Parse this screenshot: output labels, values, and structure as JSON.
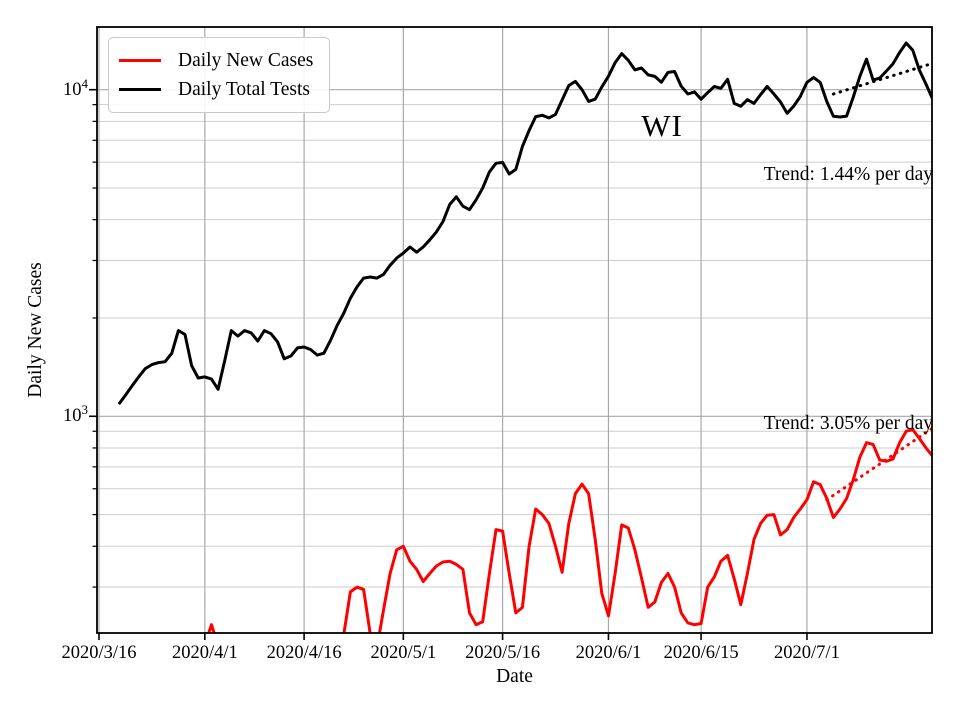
{
  "chart_data": {
    "type": "line",
    "state_label": "WI",
    "xlabel": "Date",
    "ylabel": "Daily New Cases",
    "y_scale": "log",
    "ylim": [
      217,
      15560
    ],
    "xlim_days": [
      -0.3,
      125.9
    ],
    "x_epoch": "2020/3/16",
    "grid": true,
    "x_ticks": [
      {
        "day": 0,
        "label": "2020/3/16"
      },
      {
        "day": 16,
        "label": "2020/4/1"
      },
      {
        "day": 31,
        "label": "2020/4/16"
      },
      {
        "day": 46,
        "label": "2020/5/1"
      },
      {
        "day": 61,
        "label": "2020/5/16"
      },
      {
        "day": 77,
        "label": "2020/6/1"
      },
      {
        "day": 91,
        "label": "2020/6/15"
      },
      {
        "day": 107,
        "label": "2020/7/1"
      }
    ],
    "y_major_ticks": [
      {
        "value": 1000,
        "base": "10",
        "exp": "3"
      },
      {
        "value": 10000,
        "base": "10",
        "exp": "4"
      }
    ],
    "y_minor_gridlines": [
      300,
      400,
      500,
      600,
      700,
      800,
      900,
      2000,
      3000,
      4000,
      5000,
      6000,
      7000,
      8000,
      9000
    ],
    "legend": {
      "position": "upper-left",
      "entries": [
        {
          "label": "Daily New Cases",
          "color": "#ff0000"
        },
        {
          "label": "Daily Total Tests",
          "color": "#000000"
        }
      ]
    },
    "annotations": {
      "tests_trend_label": "Trend: 1.44% per day",
      "cases_trend_label": "Trend: 3.05% per day"
    },
    "colors": {
      "cases": "#ff0000",
      "tests": "#000000",
      "grid_major": "#a8a8a8",
      "grid_minor": "#cdcdcd"
    },
    "series": [
      {
        "name": "Daily New Cases",
        "slug": "daily-new-cases",
        "color": "#ff0000",
        "line_style": "solid",
        "segments": [
          {
            "start_day": 16,
            "start_date": "2020/4/1",
            "values": [
              200,
              230,
              198
            ]
          },
          {
            "start_day": 36,
            "start_date": "2020/4/21",
            "values": [
              190,
              215,
              290,
              300,
              295,
              215,
              195,
              255,
              330,
              390,
              400,
              360,
              340,
              312,
              330,
              348,
              358,
              360,
              352,
              340,
              250,
              230,
              235,
              330,
              450,
              445,
              330,
              250,
              260,
              400,
              520,
              500,
              470,
              400,
              333,
              470,
              580,
              620,
              580,
              420,
              287,
              245,
              330,
              465,
              455,
              390,
              320,
              260,
              270,
              310,
              330,
              300,
              250,
              233,
              230,
              232,
              300,
              322,
              360,
              375,
              318,
              265,
              330,
              420,
              470,
              498,
              500,
              433,
              450,
              490,
              520,
              555,
              630,
              618,
              560,
              490,
              520,
              560,
              640,
              750,
              830,
              820,
              735,
              728,
              740,
              830,
              900,
              910,
              855,
              800,
              755
            ]
          }
        ]
      },
      {
        "name": "Daily Total Tests",
        "slug": "daily-total-tests",
        "color": "#000000",
        "line_style": "solid",
        "segments": [
          {
            "start_day": 3,
            "start_date": "2020/3/19",
            "values": [
              1090,
              1160,
              1240,
              1320,
              1400,
              1440,
              1460,
              1470,
              1560,
              1830,
              1780,
              1430,
              1310,
              1320,
              1300,
              1210,
              1480,
              1830,
              1760,
              1830,
              1800,
              1700,
              1830,
              1790,
              1690,
              1500,
              1530,
              1620,
              1630,
              1600,
              1540,
              1560,
              1710,
              1900,
              2070,
              2300,
              2490,
              2650,
              2670,
              2650,
              2720,
              2900,
              3050,
              3160,
              3300,
              3180,
              3300,
              3470,
              3670,
              3950,
              4450,
              4700,
              4400,
              4290,
              4600,
              5000,
              5600,
              5950,
              5990,
              5520,
              5700,
              6700,
              7500,
              8270,
              8350,
              8200,
              8400,
              9300,
              10300,
              10600,
              10000,
              9210,
              9350,
              10200,
              11000,
              12100,
              12900,
              12300,
              11500,
              11650,
              11100,
              10980,
              10540,
              11300,
              11370,
              10250,
              9700,
              9850,
              9350,
              9800,
              10230,
              10100,
              10760,
              9080,
              8900,
              9320,
              9080,
              9660,
              10230,
              9700,
              9170,
              8470,
              8900,
              9530,
              10530,
              10900,
              10530,
              9200,
              8290,
              8250,
              8300,
              9500,
              11000,
              12400,
              10700,
              10850,
              11400,
              12000,
              13000,
              13900,
              13200,
              11480,
              10400,
              9350
            ]
          }
        ]
      },
      {
        "name": "Daily Total Tests trend",
        "slug": "tests-trend",
        "color": "#000000",
        "line_style": "dotted",
        "trend_pct_per_day": 1.44,
        "segments": [
          {
            "points": [
              [
                111,
                9700
              ],
              [
                126,
                12050
              ]
            ]
          }
        ]
      },
      {
        "name": "Daily New Cases trend",
        "slug": "cases-trend",
        "color": "#ff0000",
        "line_style": "dotted",
        "trend_pct_per_day": 3.05,
        "segments": [
          {
            "points": [
              [
                110,
                555
              ],
              [
                126,
                920
              ]
            ]
          }
        ]
      }
    ]
  }
}
